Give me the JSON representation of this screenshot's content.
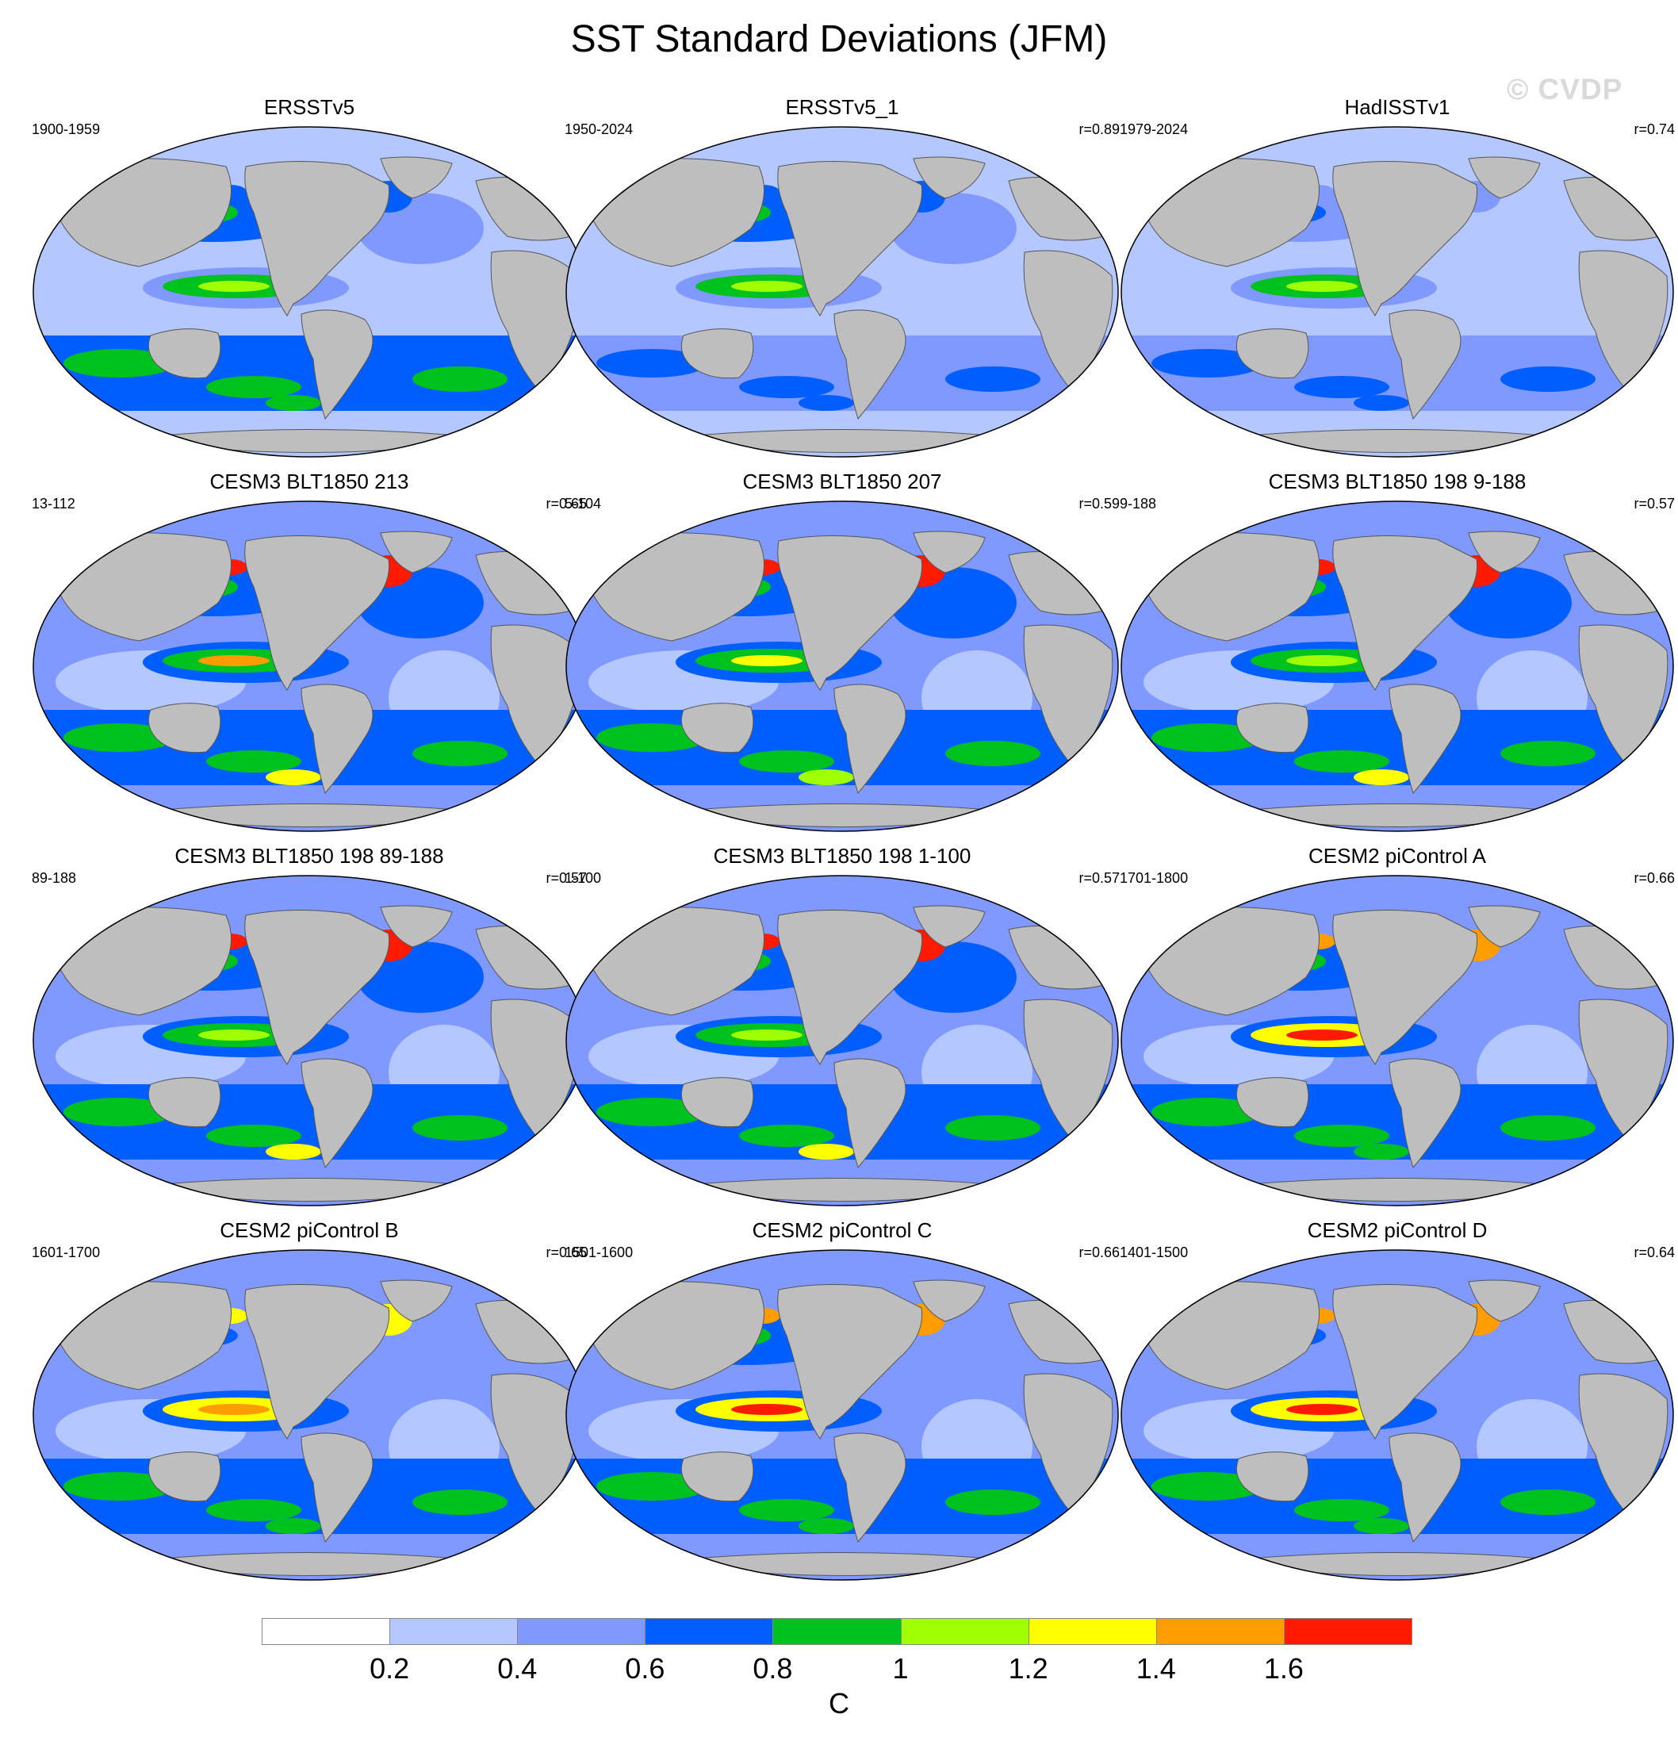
{
  "title": "SST Standard Deviations (JFM)",
  "watermark": "© CVDP",
  "colors": {
    "land": "#bebebe",
    "coast": "#555555",
    "levels": [
      "#ffffff",
      "#b4c8ff",
      "#8099ff",
      "#005eff",
      "#00c21e",
      "#a0ff00",
      "#ffff00",
      "#ff9d00",
      "#ff1a00"
    ]
  },
  "panels": [
    {
      "title": "ERSSTv5",
      "years": "1900-1959",
      "r": "",
      "levels": {
        "basin": 1,
        "nino": 4,
        "nino_core": 5,
        "north_pacific": 3,
        "north_atlantic": 2,
        "southern": 3,
        "southern_peak": 4,
        "gulf": 3
      }
    },
    {
      "title": "ERSSTv5_1",
      "years": "1950-2024",
      "r": "r=0.89",
      "levels": {
        "basin": 1,
        "nino": 4,
        "nino_core": 5,
        "north_pacific": 3,
        "north_atlantic": 2,
        "southern": 2,
        "southern_peak": 3,
        "gulf": 3
      }
    },
    {
      "title": "HadISSTv1",
      "years": "1979-2024",
      "r": "r=0.74",
      "levels": {
        "basin": 1,
        "nino": 4,
        "nino_core": 5,
        "north_pacific": 2,
        "north_atlantic": 1,
        "southern": 2,
        "southern_peak": 3,
        "gulf": 2
      }
    },
    {
      "title": "CESM3 BLT1850 213",
      "years": "13-112",
      "r": "r=0.65",
      "levels": {
        "basin": 2,
        "nino": 4,
        "nino_core": 7,
        "north_pacific": 3,
        "north_atlantic": 3,
        "southern": 3,
        "southern_peak": 6,
        "gulf": 8
      }
    },
    {
      "title": "CESM3 BLT1850 207",
      "years": "5-104",
      "r": "r=0.59",
      "levels": {
        "basin": 2,
        "nino": 4,
        "nino_core": 6,
        "north_pacific": 3,
        "north_atlantic": 3,
        "southern": 3,
        "southern_peak": 5,
        "gulf": 8
      }
    },
    {
      "title": "CESM3 BLT1850 198 9-188",
      "years": "9-188",
      "r": "r=0.57",
      "levels": {
        "basin": 2,
        "nino": 4,
        "nino_core": 5,
        "north_pacific": 3,
        "north_atlantic": 3,
        "southern": 3,
        "southern_peak": 6,
        "gulf": 8
      }
    },
    {
      "title": "CESM3 BLT1850 198 89-188",
      "years": "89-188",
      "r": "r=0.57",
      "levels": {
        "basin": 2,
        "nino": 4,
        "nino_core": 5,
        "north_pacific": 3,
        "north_atlantic": 3,
        "southern": 3,
        "southern_peak": 6,
        "gulf": 8
      }
    },
    {
      "title": "CESM3 BLT1850 198 1-100",
      "years": "1-100",
      "r": "r=0.57",
      "levels": {
        "basin": 2,
        "nino": 4,
        "nino_core": 5,
        "north_pacific": 3,
        "north_atlantic": 3,
        "southern": 3,
        "southern_peak": 6,
        "gulf": 8
      }
    },
    {
      "title": "CESM2 piControl A",
      "years": "1701-1800",
      "r": "r=0.66",
      "levels": {
        "basin": 2,
        "nino": 6,
        "nino_core": 8,
        "north_pacific": 3,
        "north_atlantic": 2,
        "southern": 3,
        "southern_peak": 4,
        "gulf": 7
      }
    },
    {
      "title": "CESM2 piControl B",
      "years": "1601-1700",
      "r": "r=0.65",
      "levels": {
        "basin": 2,
        "nino": 6,
        "nino_core": 7,
        "north_pacific": 2,
        "north_atlantic": 2,
        "southern": 3,
        "southern_peak": 4,
        "gulf": 6
      }
    },
    {
      "title": "CESM2 piControl C",
      "years": "1501-1600",
      "r": "r=0.66",
      "levels": {
        "basin": 2,
        "nino": 6,
        "nino_core": 8,
        "north_pacific": 3,
        "north_atlantic": 2,
        "southern": 3,
        "southern_peak": 4,
        "gulf": 7
      }
    },
    {
      "title": "CESM2 piControl D",
      "years": "1401-1500",
      "r": "r=0.64",
      "levels": {
        "basin": 2,
        "nino": 6,
        "nino_core": 8,
        "north_pacific": 2,
        "north_atlantic": 2,
        "southern": 3,
        "southern_peak": 4,
        "gulf": 7
      }
    }
  ],
  "colorbar": {
    "unit": "C",
    "ticks": [
      "0.2",
      "0.4",
      "0.6",
      "0.8",
      "1",
      "1.2",
      "1.4",
      "1.6"
    ]
  }
}
